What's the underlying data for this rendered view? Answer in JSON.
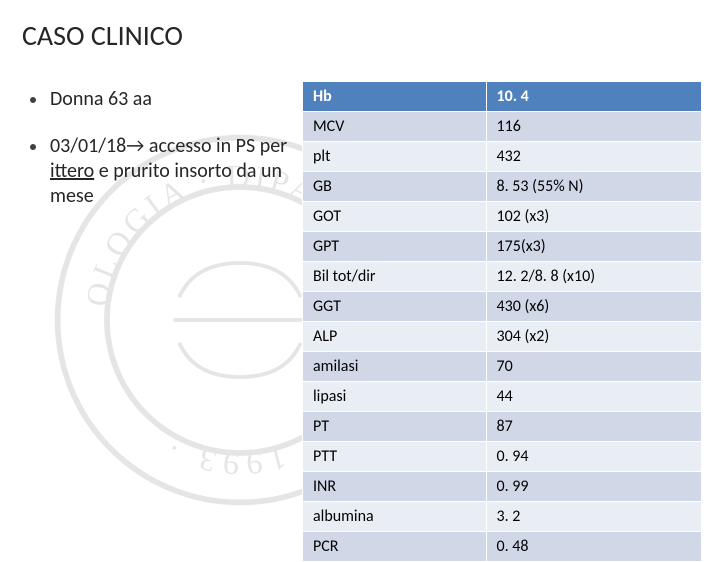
{
  "title": "CASO CLINICO",
  "bullets": [
    {
      "html": "Donna 63 aa"
    },
    {
      "html": "03/01/18&rarr; accesso in PS per <span class=\"underline\">ittero</span> e prurito insorto da un mese"
    }
  ],
  "table": {
    "columns": [
      "param",
      "value"
    ],
    "rows": [
      {
        "param": "Hb",
        "value": "10. 4",
        "cls": "header"
      },
      {
        "param": "MCV",
        "value": "116",
        "cls": "odd"
      },
      {
        "param": "plt",
        "value": "432",
        "cls": "even"
      },
      {
        "param": "GB",
        "value": "8. 53 (55% N)",
        "cls": "odd"
      },
      {
        "param": "GOT",
        "value": "102 (x3)",
        "cls": "even"
      },
      {
        "param": "GPT",
        "value": "175(x3)",
        "cls": "odd"
      },
      {
        "param": "Bil tot/dir",
        "value": "12. 2/8. 8 (x10)",
        "cls": "even"
      },
      {
        "param": "GGT",
        "value": "430 (x6)",
        "cls": "odd"
      },
      {
        "param": "ALP",
        "value": "304 (x2)",
        "cls": "even"
      },
      {
        "param": "amilasi",
        "value": "70",
        "cls": "odd"
      },
      {
        "param": "lipasi",
        "value": "44",
        "cls": "even"
      },
      {
        "param": "PT",
        "value": "87",
        "cls": "odd"
      },
      {
        "param": "PTT",
        "value": "0. 94",
        "cls": "even"
      },
      {
        "param": "INR",
        "value": "0. 99",
        "cls": "odd"
      },
      {
        "param": "albumina",
        "value": "3. 2",
        "cls": "even"
      },
      {
        "param": "PCR",
        "value": "0. 48",
        "cls": "odd"
      }
    ]
  },
  "styling": {
    "page_bg": "#ffffff",
    "title_color": "#262626",
    "title_fontsize": 28,
    "bullet_fontsize": 20,
    "table_fontsize": 16,
    "header_bg": "#4f81bd",
    "header_fg": "#ffffff",
    "odd_bg": "#d0d8e8",
    "even_bg": "#e9edf4",
    "cell_border": "#ffffff",
    "watermark_opacity": 0.12
  }
}
